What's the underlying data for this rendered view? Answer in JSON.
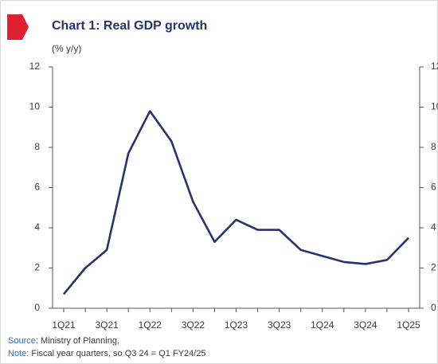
{
  "chart_data": {
    "type": "line",
    "title": "Chart 1: Real GDP growth",
    "y_label": "(% y/y)",
    "categories": [
      "1Q21",
      null,
      "3Q21",
      null,
      "1Q22",
      null,
      "3Q22",
      null,
      "1Q23",
      null,
      "3Q23",
      null,
      "1Q24",
      null,
      "3Q24",
      null,
      "1Q25"
    ],
    "series": [
      {
        "color": "#28326e",
        "values": [
          0.7,
          2.0,
          2.9,
          7.7,
          9.8,
          8.3,
          5.3,
          3.3,
          4.4,
          3.9,
          3.9,
          2.9,
          2.6,
          2.3,
          2.2,
          2.4,
          3.5
        ]
      }
    ],
    "ylim": [
      0,
      12
    ],
    "yticks": [
      0,
      2,
      4,
      6,
      8,
      10,
      12
    ],
    "grid": false,
    "source": {
      "label": "Source:",
      "text": "Ministry of Planning,"
    },
    "note": {
      "label": "Note:",
      "text": "Fiscal year quarters, so Q3 24 = Q1 FY24/25"
    }
  }
}
